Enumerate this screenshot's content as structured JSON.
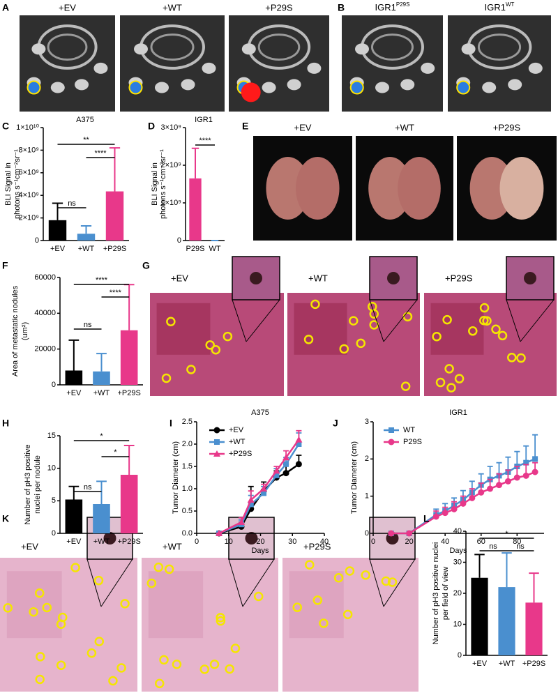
{
  "images": [
    {
      "label": "A",
      "captions": [
        "+EV",
        "+WT",
        "+P29S"
      ]
    },
    {
      "label": "B",
      "captions": [
        {
          "text": "IGR1",
          "sup": "P29S"
        },
        {
          "text": "IGR1",
          "sup": "WT"
        }
      ]
    },
    {
      "label": "E",
      "captions": [
        "+EV",
        "+WT",
        "+P29S"
      ]
    },
    {
      "label": "G",
      "captions": [
        "+EV",
        "+WT",
        "+P29S"
      ]
    },
    {
      "label": "K",
      "captions": [
        "+EV",
        "+WT",
        "+P29S"
      ]
    }
  ],
  "chart_data": [
    {
      "type": "bar",
      "label": "C",
      "title": "A375",
      "ylabel": [
        "BLI Signal in",
        "photons s⁻¹cm⁻²sr⁻¹"
      ],
      "categories": [
        "+EV",
        "+WT",
        "+P29S"
      ],
      "values": [
        1800000000,
        600000000,
        4350000000
      ],
      "errors": [
        1500000000,
        700000000,
        3850000000
      ],
      "colors": [
        "#000000",
        "#4a8fcf",
        "#e8388a"
      ],
      "ylim": [
        0,
        10000000000
      ],
      "yticks": [
        0,
        {
          "value": 2000000000,
          "label": "2×10⁹"
        },
        {
          "value": 4000000000,
          "label": "4×10⁹"
        },
        {
          "value": 6000000000,
          "label": "6×10⁹"
        },
        {
          "value": 8000000000,
          "label": "8×10⁹"
        },
        {
          "value": 10000000000,
          "label": "1×10¹⁰"
        }
      ],
      "annotations": [
        {
          "text": "ns",
          "between": [
            "+EV",
            "+WT"
          ]
        },
        {
          "text": "**",
          "between": [
            "+EV",
            "+P29S"
          ]
        },
        {
          "text": "****",
          "between": [
            "+WT",
            "+P29S"
          ]
        }
      ]
    },
    {
      "type": "bar",
      "label": "D",
      "title": "IGR1",
      "ylabel": [
        "BLI Signal in",
        "photons s⁻¹cm⁻²sr⁻¹"
      ],
      "categories": [
        "P29S",
        "WT"
      ],
      "values": [
        1650000000,
        0
      ],
      "errors": [
        800000000,
        0
      ],
      "colors": [
        "#e8388a",
        "#4a8fcf"
      ],
      "ylim": [
        0,
        3000000000
      ],
      "yticks": [
        0,
        {
          "value": 1000000000,
          "label": "1×10⁹"
        },
        {
          "value": 2000000000,
          "label": "2×10⁹"
        },
        {
          "value": 3000000000,
          "label": "3×10⁹"
        }
      ],
      "annotations": [
        {
          "text": "****",
          "between": [
            "P29S",
            "WT"
          ]
        }
      ]
    },
    {
      "type": "bar",
      "label": "F",
      "ylabel": [
        "Area of metastatic nodules",
        "(um²)"
      ],
      "categories": [
        "+EV",
        "+WT",
        "+P29S"
      ],
      "values": [
        8000,
        7500,
        30500
      ],
      "errors": [
        17000,
        10000,
        25500
      ],
      "colors": [
        "#000000",
        "#4a8fcf",
        "#e8388a"
      ],
      "ylim": [
        0,
        60000
      ],
      "yticks": [
        0,
        20000,
        40000,
        60000
      ],
      "annotations": [
        {
          "text": "ns",
          "between": [
            "+EV",
            "+WT"
          ]
        },
        {
          "text": "****",
          "between": [
            "+EV",
            "+P29S"
          ]
        },
        {
          "text": "****",
          "between": [
            "+WT",
            "+P29S"
          ]
        }
      ]
    },
    {
      "type": "bar",
      "label": "H",
      "ylabel": [
        "Number of pH3 positive",
        "nuclei per nodule"
      ],
      "categories": [
        "+EV",
        "+WT",
        "+P29S"
      ],
      "values": [
        5.2,
        4.5,
        9.0
      ],
      "errors": [
        2.0,
        3.5,
        4.5
      ],
      "colors": [
        "#000000",
        "#4a8fcf",
        "#e8388a"
      ],
      "ylim": [
        0,
        15
      ],
      "yticks": [
        0,
        5,
        10,
        15
      ],
      "annotations": [
        {
          "text": "ns",
          "between": [
            "+EV",
            "+WT"
          ]
        },
        {
          "text": "*",
          "between": [
            "+EV",
            "+P29S"
          ]
        },
        {
          "text": "*",
          "between": [
            "+WT",
            "+P29S"
          ]
        }
      ]
    },
    {
      "type": "line",
      "label": "I",
      "title": "A375",
      "xlabel": "Days",
      "ylabel": [
        "Tumor Diameter (cm)"
      ],
      "x": [
        7,
        14,
        17,
        21,
        25,
        28,
        32
      ],
      "xlim": [
        0,
        40
      ],
      "xticks": [
        0,
        10,
        20,
        30,
        40
      ],
      "ylim": [
        0,
        2.5
      ],
      "yticks": [
        {
          "value": 0,
          "label": "0.0"
        },
        0.5,
        {
          "value": 1,
          "label": "1.0"
        },
        1.5,
        {
          "value": 2,
          "label": "2.0"
        },
        2.5
      ],
      "series": [
        {
          "name": "+EV",
          "color": "#000000",
          "marker": "circle",
          "values": [
            0,
            0.15,
            0.55,
            0.95,
            1.25,
            1.35,
            1.55
          ],
          "errors": [
            0,
            0.1,
            0.5,
            0.2,
            0.15,
            0.2,
            0.2
          ]
        },
        {
          "name": "+WT",
          "color": "#4a8fcf",
          "marker": "square",
          "values": [
            0,
            0.2,
            0.65,
            0.9,
            1.3,
            1.55,
            2.0
          ],
          "errors": [
            0,
            0.1,
            0.2,
            0.15,
            0.15,
            0.15,
            0.25
          ]
        },
        {
          "name": "+P29S",
          "color": "#e8388a",
          "marker": "triangle",
          "values": [
            0,
            0.25,
            0.75,
            1.0,
            1.4,
            1.7,
            2.1
          ],
          "errors": [
            0,
            0.1,
            0.2,
            0.1,
            0.1,
            0.15,
            0.2
          ]
        }
      ]
    },
    {
      "type": "line",
      "label": "J",
      "title": "IGR1",
      "xlabel": "Days",
      "ylabel": [
        "Tumor Diameter (cm)"
      ],
      "x": [
        10,
        20,
        35,
        40,
        45,
        50,
        55,
        60,
        65,
        70,
        75,
        80,
        85,
        90
      ],
      "xlim": [
        0,
        95
      ],
      "xticks": [
        0,
        20,
        40,
        60,
        80
      ],
      "ylim": [
        0,
        3
      ],
      "yticks": [
        0,
        1,
        2,
        3
      ],
      "series": [
        {
          "name": "WT",
          "color": "#4a8fcf",
          "marker": "square",
          "values": [
            0,
            0,
            0.5,
            0.6,
            0.75,
            0.9,
            1.1,
            1.3,
            1.45,
            1.55,
            1.65,
            1.8,
            1.9,
            2.0
          ],
          "errors": [
            0,
            0,
            0.15,
            0.2,
            0.2,
            0.25,
            0.3,
            0.3,
            0.35,
            0.35,
            0.4,
            0.4,
            0.45,
            0.65
          ]
        },
        {
          "name": "P29S",
          "color": "#e8388a",
          "marker": "circle",
          "values": [
            0,
            0,
            0.45,
            0.55,
            0.65,
            0.8,
            0.95,
            1.1,
            1.2,
            1.3,
            1.4,
            1.5,
            1.55,
            1.65
          ],
          "errors": [
            0,
            0,
            0.15,
            0.15,
            0.2,
            0.2,
            0.25,
            0.25,
            0.25,
            0.3,
            0.3,
            0.3,
            0.3,
            0.25
          ]
        }
      ]
    },
    {
      "type": "bar",
      "label": "L",
      "ylabel": [
        "Number of pH3 positive nuclei",
        "per field of view"
      ],
      "categories": [
        "+EV",
        "+WT",
        "+P29S"
      ],
      "values": [
        25,
        22,
        17
      ],
      "errors": [
        7.5,
        11,
        9.5
      ],
      "colors": [
        "#000000",
        "#4a8fcf",
        "#e8388a"
      ],
      "ylim": [
        0,
        40
      ],
      "yticks": [
        0,
        10,
        20,
        30,
        40
      ],
      "annotations": [
        {
          "text": "ns",
          "between": [
            "+EV",
            "+WT"
          ]
        },
        {
          "text": "ns",
          "between": [
            "+WT",
            "+P29S"
          ]
        },
        {
          "text": "*",
          "between": [
            "+EV",
            "+P29S"
          ]
        }
      ]
    }
  ]
}
